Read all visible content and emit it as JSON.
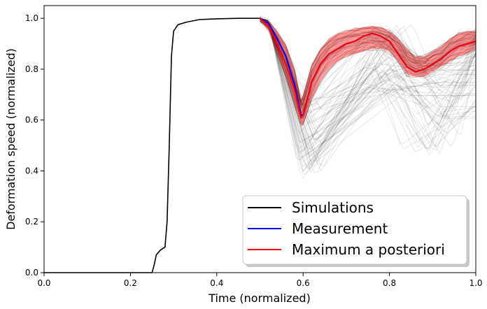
{
  "chart_data": {
    "type": "line",
    "title": "",
    "xlabel": "Time (normalized)",
    "ylabel": "Deformation speed (normalized)",
    "xlim": [
      0.0,
      1.0
    ],
    "ylim": [
      0.0,
      1.05
    ],
    "xticks": [
      "0.0",
      "0.2",
      "0.4",
      "0.6",
      "0.8",
      "1.0"
    ],
    "yticks": [
      "0.0",
      "0.2",
      "0.4",
      "0.6",
      "0.8",
      "1.0"
    ],
    "grid": false,
    "legend_position": "lower-right",
    "legend": [
      "Simulations",
      "Measurement",
      "Maximum a posteriori"
    ],
    "colors": {
      "simulations": "#000000",
      "measurement": "#0000ff",
      "map": "#ff0000",
      "band": "#ff0000"
    },
    "series": [
      {
        "name": "Simulations",
        "x": [
          0.0,
          0.25,
          0.255,
          0.26,
          0.27,
          0.28,
          0.285,
          0.29,
          0.295,
          0.3,
          0.31,
          0.33,
          0.36,
          0.4,
          0.45,
          0.5
        ],
        "y": [
          0.0,
          0.0,
          0.03,
          0.07,
          0.09,
          0.1,
          0.2,
          0.5,
          0.85,
          0.95,
          0.975,
          0.985,
          0.995,
          0.998,
          1.0,
          1.0
        ]
      },
      {
        "name": "Measurement",
        "x": [
          0.5,
          0.52,
          0.54,
          0.56,
          0.58,
          0.595,
          0.6,
          0.62,
          0.64,
          0.66,
          0.68,
          0.7,
          0.72,
          0.74,
          0.76,
          0.78,
          0.8,
          0.82,
          0.84,
          0.86,
          0.88,
          0.9,
          0.92,
          0.94,
          0.96,
          0.98,
          1.0
        ],
        "y": [
          1.0,
          0.98,
          0.92,
          0.85,
          0.74,
          0.62,
          0.62,
          0.75,
          0.82,
          0.86,
          0.88,
          0.9,
          0.91,
          0.93,
          0.94,
          0.93,
          0.91,
          0.86,
          0.81,
          0.79,
          0.8,
          0.82,
          0.84,
          0.87,
          0.89,
          0.9,
          0.91
        ]
      },
      {
        "name": "Maximum a posteriori",
        "x": [
          0.5,
          0.52,
          0.54,
          0.56,
          0.58,
          0.595,
          0.6,
          0.62,
          0.64,
          0.66,
          0.68,
          0.7,
          0.72,
          0.74,
          0.76,
          0.78,
          0.8,
          0.82,
          0.84,
          0.86,
          0.88,
          0.9,
          0.92,
          0.94,
          0.96,
          0.98,
          1.0
        ],
        "y": [
          1.0,
          0.97,
          0.9,
          0.82,
          0.72,
          0.61,
          0.62,
          0.75,
          0.82,
          0.86,
          0.88,
          0.9,
          0.91,
          0.93,
          0.94,
          0.93,
          0.91,
          0.86,
          0.81,
          0.79,
          0.8,
          0.82,
          0.84,
          0.87,
          0.89,
          0.9,
          0.91
        ]
      }
    ],
    "band": {
      "x": [
        0.5,
        0.52,
        0.54,
        0.56,
        0.58,
        0.595,
        0.6,
        0.62,
        0.64,
        0.66,
        0.68,
        0.7,
        0.72,
        0.74,
        0.76,
        0.78,
        0.8,
        0.82,
        0.84,
        0.86,
        0.88,
        0.9,
        0.92,
        0.94,
        0.96,
        0.98,
        1.0
      ],
      "upper": [
        1.0,
        0.99,
        0.95,
        0.9,
        0.8,
        0.68,
        0.7,
        0.82,
        0.88,
        0.92,
        0.94,
        0.95,
        0.96,
        0.965,
        0.97,
        0.965,
        0.95,
        0.92,
        0.88,
        0.85,
        0.85,
        0.87,
        0.89,
        0.92,
        0.94,
        0.95,
        0.95
      ],
      "lower": [
        0.99,
        0.95,
        0.86,
        0.77,
        0.66,
        0.58,
        0.58,
        0.68,
        0.75,
        0.8,
        0.83,
        0.85,
        0.86,
        0.87,
        0.88,
        0.88,
        0.87,
        0.83,
        0.78,
        0.77,
        0.77,
        0.79,
        0.81,
        0.83,
        0.85,
        0.86,
        0.88
      ]
    }
  }
}
